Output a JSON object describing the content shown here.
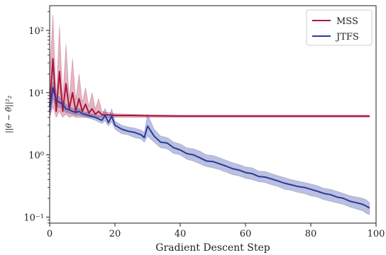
{
  "chart_data": {
    "type": "line",
    "xlabel": "Gradient Descent Step",
    "ylabel": "||θ − θ̂||²₂",
    "y_scale": "log",
    "xlim": [
      0,
      100
    ],
    "ylim": [
      0.08,
      250
    ],
    "x_ticks": [
      0,
      20,
      40,
      60,
      80,
      100
    ],
    "x_tick_labels": [
      "0",
      "20",
      "40",
      "60",
      "80",
      "100"
    ],
    "y_ticks": [
      0.1,
      1,
      10,
      100
    ],
    "y_tick_labels": [
      "10⁻¹",
      "10⁰",
      "10¹",
      "10²"
    ],
    "legend_position": "top-right",
    "grid": false,
    "series": [
      {
        "name": "MSS",
        "color": "#a8173d",
        "x": [
          0,
          1,
          2,
          3,
          4,
          5,
          6,
          7,
          8,
          9,
          10,
          11,
          12,
          13,
          14,
          15,
          16,
          18,
          20,
          25,
          30,
          40,
          50,
          60,
          70,
          80,
          90,
          98
        ],
        "y": [
          6,
          35,
          5,
          22,
          5,
          14,
          5.5,
          10,
          5,
          8,
          5,
          6.5,
          4.7,
          5.5,
          4.5,
          5,
          4.4,
          4.4,
          4.3,
          4.3,
          4.25,
          4.2,
          4.2,
          4.2,
          4.2,
          4.2,
          4.2,
          4.2
        ],
        "upper": [
          20,
          180,
          8,
          120,
          8,
          60,
          8,
          35,
          7.5,
          20,
          7,
          12,
          6,
          10,
          5.5,
          8,
          5,
          4.8,
          4.6,
          4.5,
          4.4,
          4.35,
          4.35,
          4.35,
          4.35,
          4.35,
          4.35,
          4.35
        ],
        "lower": [
          4,
          6,
          4,
          5,
          4,
          4.5,
          4,
          4.2,
          4,
          4,
          4,
          4,
          4,
          4,
          4,
          4,
          4,
          4,
          4,
          4,
          4,
          4,
          4,
          4,
          4,
          4,
          4,
          4
        ]
      },
      {
        "name": "JTFS",
        "color": "#2a3a9a",
        "x": [
          0,
          1,
          2,
          3,
          4,
          5,
          6,
          7,
          8,
          9,
          10,
          12,
          14,
          16,
          17,
          18,
          19,
          20,
          22,
          24,
          26,
          28,
          29,
          30,
          32,
          34,
          36,
          38,
          40,
          42,
          44,
          46,
          48,
          50,
          52,
          54,
          56,
          58,
          60,
          62,
          64,
          66,
          68,
          70,
          72,
          74,
          76,
          78,
          80,
          82,
          84,
          86,
          88,
          90,
          92,
          94,
          96,
          97,
          98
        ],
        "y": [
          5,
          12,
          7.5,
          7,
          6.5,
          5.5,
          5.3,
          5,
          4.8,
          5,
          4.6,
          4.3,
          4,
          3.6,
          4.3,
          3.3,
          4.2,
          3,
          2.6,
          2.4,
          2.3,
          2.1,
          1.9,
          2.9,
          2.0,
          1.6,
          1.55,
          1.3,
          1.2,
          1.05,
          1.0,
          0.9,
          0.8,
          0.78,
          0.72,
          0.66,
          0.6,
          0.57,
          0.52,
          0.5,
          0.45,
          0.44,
          0.41,
          0.38,
          0.35,
          0.33,
          0.31,
          0.3,
          0.28,
          0.26,
          0.24,
          0.23,
          0.21,
          0.2,
          0.18,
          0.17,
          0.16,
          0.15,
          0.14
        ],
        "upper": [
          7,
          15,
          9,
          8.5,
          7.5,
          6.5,
          6,
          5.6,
          5.3,
          5.6,
          5,
          4.7,
          4.4,
          4.2,
          5.6,
          3.9,
          5.5,
          3.5,
          3,
          2.8,
          2.7,
          2.5,
          2.3,
          4.5,
          2.6,
          2.0,
          1.9,
          1.6,
          1.5,
          1.3,
          1.25,
          1.15,
          1.0,
          0.98,
          0.9,
          0.82,
          0.75,
          0.7,
          0.64,
          0.62,
          0.55,
          0.54,
          0.5,
          0.46,
          0.43,
          0.4,
          0.38,
          0.36,
          0.34,
          0.32,
          0.29,
          0.28,
          0.26,
          0.24,
          0.22,
          0.21,
          0.2,
          0.19,
          0.17
        ],
        "lower": [
          4,
          8,
          6,
          5.8,
          5.5,
          4.8,
          4.7,
          4.5,
          4.3,
          4.4,
          4.2,
          3.9,
          3.6,
          3.2,
          3.5,
          2.9,
          3.4,
          2.6,
          2.2,
          2.1,
          1.9,
          1.8,
          1.6,
          2.0,
          1.6,
          1.3,
          1.25,
          1.05,
          1.0,
          0.85,
          0.8,
          0.72,
          0.65,
          0.62,
          0.58,
          0.53,
          0.48,
          0.46,
          0.42,
          0.4,
          0.37,
          0.36,
          0.33,
          0.31,
          0.28,
          0.27,
          0.25,
          0.24,
          0.22,
          0.21,
          0.19,
          0.18,
          0.17,
          0.16,
          0.145,
          0.135,
          0.125,
          0.115,
          0.11
        ]
      }
    ]
  }
}
